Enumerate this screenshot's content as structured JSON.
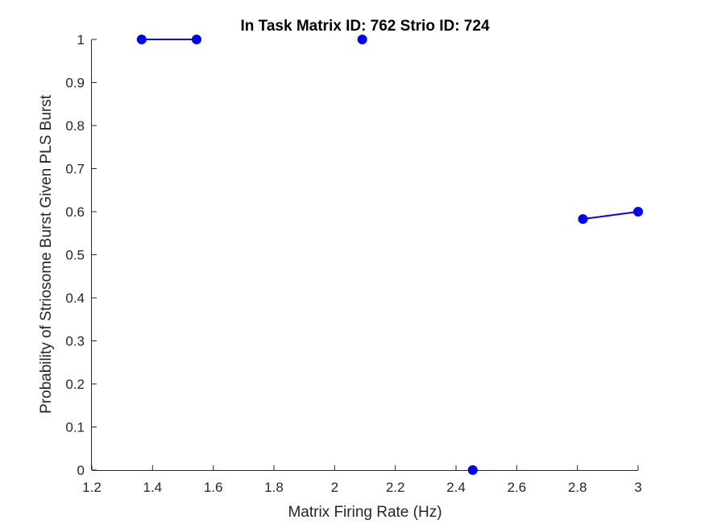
{
  "chart_data": {
    "type": "line",
    "title": "In Task Matrix ID: 762 Strio ID: 724",
    "xlabel": "Matrix Firing Rate (Hz)",
    "ylabel": "Probability of Striosome Burst Given PLS Burst",
    "xlim": [
      1.2,
      3.0
    ],
    "ylim": [
      0,
      1
    ],
    "xticks": [
      1.2,
      1.4,
      1.6,
      1.8,
      2.0,
      2.2,
      2.4,
      2.6,
      2.8,
      3.0
    ],
    "xtick_labels": [
      "1.2",
      "1.4",
      "1.6",
      "1.8",
      "2",
      "2.2",
      "2.4",
      "2.6",
      "2.8",
      "3"
    ],
    "yticks": [
      0,
      0.1,
      0.2,
      0.3,
      0.4,
      0.5,
      0.6,
      0.7,
      0.8,
      0.9,
      1.0
    ],
    "ytick_labels": [
      "0",
      "0.1",
      "0.2",
      "0.3",
      "0.4",
      "0.5",
      "0.6",
      "0.7",
      "0.8",
      "0.9",
      "1"
    ],
    "grid": false,
    "box": false,
    "series": [
      {
        "color": "#0000ff",
        "marker": "circle",
        "segments": [
          [
            {
              "x": 1.364,
              "y": 1.0
            },
            {
              "x": 1.545,
              "y": 1.0
            }
          ],
          [
            {
              "x": 2.091,
              "y": 1.0
            }
          ],
          [
            {
              "x": 2.455,
              "y": 0.0
            }
          ],
          [
            {
              "x": 2.818,
              "y": 0.583
            },
            {
              "x": 3.0,
              "y": 0.6
            }
          ]
        ]
      }
    ]
  }
}
